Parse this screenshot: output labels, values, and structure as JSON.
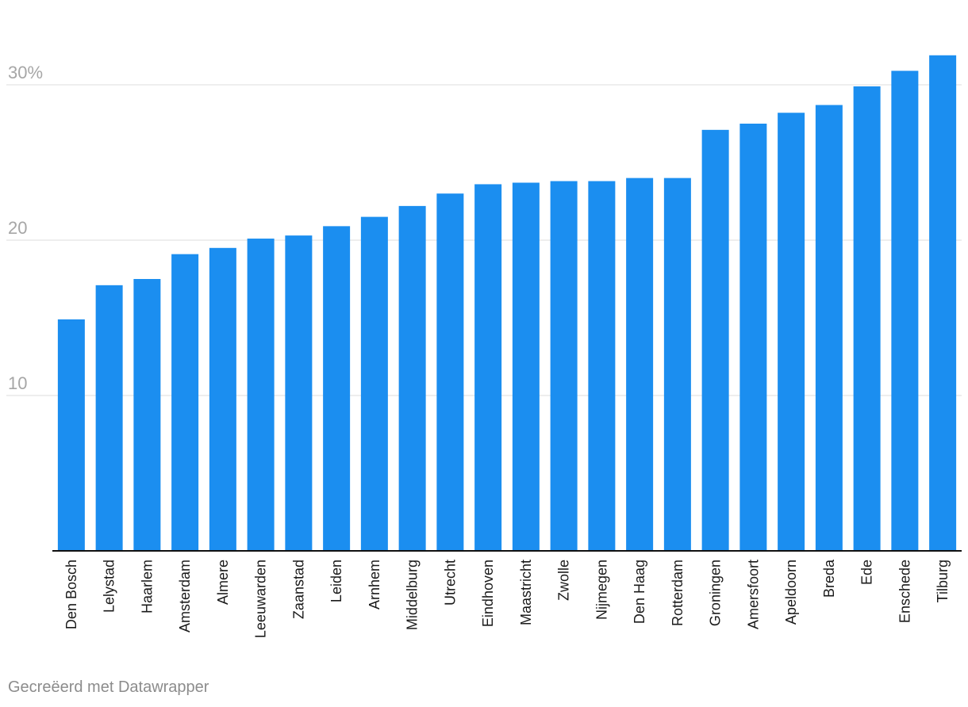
{
  "footer": {
    "credit": "Gecreëerd met Datawrapper"
  },
  "colors": {
    "bar": "#1b8ef0",
    "grid": "#e3e3e3",
    "baseline": "#111111",
    "tick": "#a6a6a6"
  },
  "chart_data": {
    "type": "bar",
    "title": "",
    "xlabel": "",
    "ylabel": "",
    "ylim": [
      0,
      30
    ],
    "yticks": [
      {
        "value": 10,
        "label": "10"
      },
      {
        "value": 20,
        "label": "20"
      },
      {
        "value": 30,
        "label": "30%"
      }
    ],
    "grid": true,
    "categories": [
      "Den Bosch",
      "Lelystad",
      "Haarlem",
      "Amsterdam",
      "Almere",
      "Leeuwarden",
      "Zaanstad",
      "Leiden",
      "Arnhem",
      "Middelburg",
      "Utrecht",
      "Eindhoven",
      "Maastricht",
      "Zwolle",
      "Nijmegen",
      "Den Haag",
      "Rotterdam",
      "Groningen",
      "Amersfoort",
      "Apeldoorn",
      "Breda",
      "Ede",
      "Enschede",
      "Tilburg"
    ],
    "values": [
      14.9,
      17.1,
      17.5,
      19.1,
      19.5,
      20.1,
      20.3,
      20.9,
      21.5,
      22.2,
      23.0,
      23.6,
      23.7,
      23.8,
      23.8,
      24.0,
      24.0,
      27.1,
      27.5,
      28.2,
      28.7,
      29.9,
      30.9,
      31.9
    ]
  }
}
